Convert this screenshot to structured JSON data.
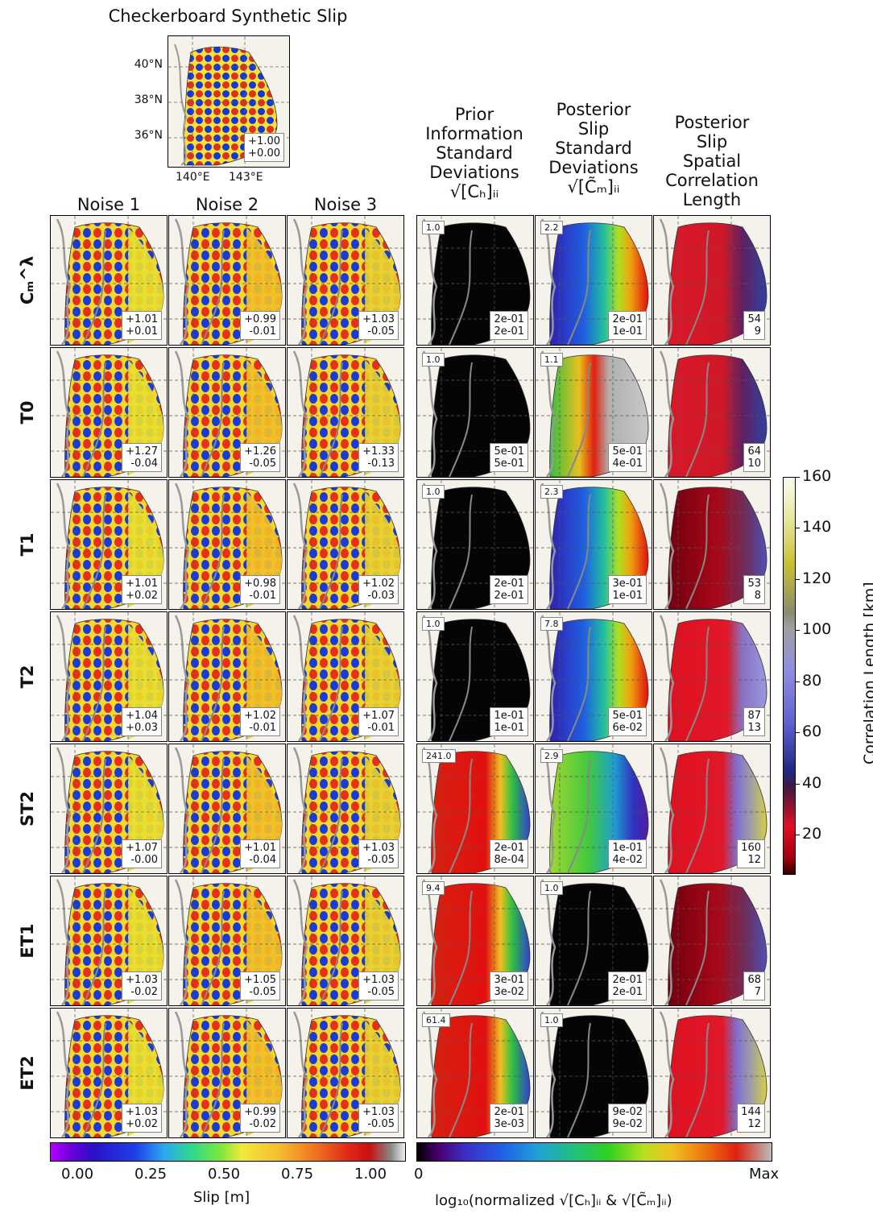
{
  "title": "Checkerboard Synthetic Slip",
  "ref_stats": [
    "+1.00",
    "+0.00"
  ],
  "lat_labels": [
    "40°N",
    "38°N",
    "36°N"
  ],
  "lon_labels": [
    "140°E",
    "143°E"
  ],
  "noise_headers": [
    "Noise 1",
    "Noise 2",
    "Noise 3"
  ],
  "right_headers": [
    {
      "lines": [
        "Prior",
        "Information",
        "Standard",
        "Deviations"
      ],
      "math": "√[Cₕ]ᵢᵢ"
    },
    {
      "lines": [
        "Posterior",
        "Slip",
        "Standard",
        "Deviations"
      ],
      "math": "√[C̃ₘ]ᵢᵢ"
    },
    {
      "lines": [
        "Posterior",
        "Slip",
        "Spatial",
        "Correlation",
        "Length"
      ],
      "math": ""
    }
  ],
  "rows": [
    {
      "label": "Cₘ^λ",
      "noise": [
        [
          "+1.01",
          "+0.01"
        ],
        [
          "+0.99",
          "-0.01"
        ],
        [
          "+1.03",
          "-0.05"
        ]
      ],
      "prior": {
        "corner": "1.0",
        "stats": [
          "2e-01",
          "2e-01"
        ],
        "style": "black"
      },
      "post": {
        "corner": "2.2",
        "stats": [
          "2e-01",
          "1e-01"
        ],
        "style": "rainbow"
      },
      "corr": {
        "stats": [
          "54",
          "9"
        ],
        "style": "redblue"
      }
    },
    {
      "label": "T0",
      "noise": [
        [
          "+1.27",
          "-0.04"
        ],
        [
          "+1.26",
          "-0.05"
        ],
        [
          "+1.33",
          "-0.13"
        ]
      ],
      "prior": {
        "corner": "1.0",
        "stats": [
          "5e-01",
          "5e-01"
        ],
        "style": "black"
      },
      "post": {
        "corner": "1.1",
        "stats": [
          "5e-01",
          "4e-01"
        ],
        "style": "mixed"
      },
      "corr": {
        "stats": [
          "64",
          "10"
        ],
        "style": "redblue"
      }
    },
    {
      "label": "T1",
      "noise": [
        [
          "+1.01",
          "+0.02"
        ],
        [
          "+0.98",
          "-0.01"
        ],
        [
          "+1.02",
          "-0.03"
        ]
      ],
      "prior": {
        "corner": "1.0",
        "stats": [
          "2e-01",
          "2e-01"
        ],
        "style": "black"
      },
      "post": {
        "corner": "2.3",
        "stats": [
          "3e-01",
          "1e-01"
        ],
        "style": "rainbow"
      },
      "corr": {
        "stats": [
          "53",
          "8"
        ],
        "style": "darkred"
      }
    },
    {
      "label": "T2",
      "noise": [
        [
          "+1.04",
          "+0.03"
        ],
        [
          "+1.02",
          "-0.01"
        ],
        [
          "+1.07",
          "-0.01"
        ]
      ],
      "prior": {
        "corner": "1.0",
        "stats": [
          "1e-01",
          "1e-01"
        ],
        "style": "black"
      },
      "post": {
        "corner": "7.8",
        "stats": [
          "5e-01",
          "6e-02"
        ],
        "style": "rainbow"
      },
      "corr": {
        "stats": [
          "87",
          "13"
        ],
        "style": "redlav"
      }
    },
    {
      "label": "ST2",
      "noise": [
        [
          "+1.07",
          "-0.00"
        ],
        [
          "+1.01",
          "-0.04"
        ],
        [
          "+1.03",
          "-0.05"
        ]
      ],
      "prior": {
        "corner": "241.0",
        "stats": [
          "2e-01",
          "8e-04"
        ],
        "style": "rainbow2"
      },
      "post": {
        "corner": "2.9",
        "stats": [
          "1e-01",
          "4e-02"
        ],
        "style": "green"
      },
      "corr": {
        "stats": [
          "160",
          "12"
        ],
        "style": "redyellow"
      }
    },
    {
      "label": "ET1",
      "noise": [
        [
          "+1.03",
          "-0.02"
        ],
        [
          "+1.05",
          "-0.05"
        ],
        [
          "+1.03",
          "-0.05"
        ]
      ],
      "prior": {
        "corner": "9.4",
        "stats": [
          "3e-01",
          "3e-02"
        ],
        "style": "rainbow2"
      },
      "post": {
        "corner": "1.0",
        "stats": [
          "2e-01",
          "2e-01"
        ],
        "style": "black"
      },
      "corr": {
        "stats": [
          "68",
          "7"
        ],
        "style": "darkred"
      }
    },
    {
      "label": "ET2",
      "noise": [
        [
          "+1.03",
          "+0.02"
        ],
        [
          "+0.99",
          "-0.02"
        ],
        [
          "+1.03",
          "-0.05"
        ]
      ],
      "prior": {
        "corner": "61.4",
        "stats": [
          "2e-01",
          "3e-03"
        ],
        "style": "rainbow2"
      },
      "post": {
        "corner": "1.0",
        "stats": [
          "9e-02",
          "9e-02"
        ],
        "style": "black"
      },
      "corr": {
        "stats": [
          "144",
          "12"
        ],
        "style": "redyellow"
      }
    }
  ],
  "slip_colorbar": {
    "ticks": [
      "0.00",
      "0.25",
      "0.50",
      "0.75",
      "1.00"
    ],
    "label": "Slip [m]"
  },
  "log_colorbar": {
    "min": "0",
    "max": "Max",
    "label": "log₁₀(normalized √[Cₕ]ᵢᵢ & √[C̃ₘ]ᵢᵢ)"
  },
  "corr_colorbar": {
    "ticks": [
      "160",
      "140",
      "120",
      "100",
      "80",
      "60",
      "40",
      "20"
    ],
    "label": "Correlation Length [km]"
  }
}
